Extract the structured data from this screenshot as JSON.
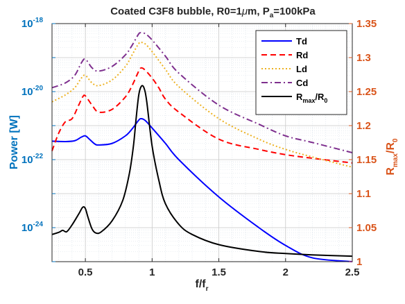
{
  "chart_data": {
    "type": "line",
    "title_parts": [
      "Coated C3F8 bubble, R0=1",
      "μ",
      "m, P",
      "a",
      "=100kPa"
    ],
    "xlabel_parts": [
      "f/f",
      "r"
    ],
    "ylabel_left": "Power [W]",
    "ylabel_right_parts": [
      "R",
      "max",
      "/R",
      "0"
    ],
    "xlim": [
      0.25,
      2.5
    ],
    "x_ticks": [
      0.5,
      1,
      1.5,
      2,
      2.5
    ],
    "x_tick_labels": [
      "0.5",
      "1",
      "1.5",
      "2",
      "2.5"
    ],
    "y_left": {
      "scale": "log",
      "range": [
        1e-25,
        1e-18
      ],
      "tick_exponents": [
        -18,
        -20,
        -22,
        -24
      ],
      "tick_base": "10"
    },
    "y_right": {
      "scale": "linear",
      "range": [
        1.0,
        1.35
      ],
      "ticks": [
        1,
        1.05,
        1.1,
        1.15,
        1.2,
        1.25,
        1.3,
        1.35
      ],
      "tick_labels": [
        "1",
        "1.05",
        "1.1",
        "1.15",
        "1.2",
        "1.25",
        "1.3",
        "1.35"
      ]
    },
    "grid": true,
    "minor_grid": true,
    "legend_position": "top-right",
    "series": [
      {
        "name": "Td",
        "axis": "left",
        "color": "#0000FF",
        "dash": "solid",
        "x": [
          0.25,
          0.35,
          0.42,
          0.47,
          0.5,
          0.53,
          0.57,
          0.6,
          0.7,
          0.8,
          0.85,
          0.9,
          0.92,
          0.95,
          1.0,
          1.1,
          1.2,
          1.5,
          1.8,
          2.0,
          2.2,
          2.5
        ],
        "y": [
          3.5e-22,
          3.4e-22,
          3.6e-22,
          4.6e-22,
          5e-22,
          4e-22,
          2.9e-22,
          2.7e-22,
          3e-22,
          5e-22,
          8e-22,
          1.45e-21,
          1.6e-21,
          1.4e-21,
          8.5e-22,
          3e-22,
          1e-22,
          8e-24,
          1e-24,
          3e-25,
          1.3e-25,
          1e-25
        ]
      },
      {
        "name": "Rd",
        "axis": "left",
        "color": "#FF0000",
        "dash": "dashed",
        "x": [
          0.25,
          0.3,
          0.35,
          0.4,
          0.45,
          0.48,
          0.5,
          0.55,
          0.6,
          0.7,
          0.8,
          0.85,
          0.9,
          0.92,
          0.95,
          1.0,
          1.05,
          1.1,
          1.2,
          1.5,
          1.8,
          2.0,
          2.2,
          2.5
        ],
        "y": [
          1.8e-22,
          6e-22,
          1.3e-21,
          1.6e-21,
          4e-21,
          7e-21,
          7.5e-21,
          4e-21,
          2.5e-21,
          3e-21,
          7e-21,
          1.5e-20,
          4e-20,
          5e-20,
          4.2e-20,
          2.5e-20,
          1.3e-20,
          6e-21,
          2.5e-21,
          4e-22,
          2e-22,
          1.4e-22,
          1.1e-22,
          8e-23
        ]
      },
      {
        "name": "Ld",
        "axis": "left",
        "color": "#EDB120",
        "dash": "dotted",
        "x": [
          0.25,
          0.35,
          0.42,
          0.47,
          0.5,
          0.55,
          0.6,
          0.7,
          0.8,
          0.85,
          0.9,
          0.92,
          0.95,
          1.0,
          1.1,
          1.2,
          1.5,
          1.8,
          2.0,
          2.2,
          2.5
        ],
        "y": [
          5e-21,
          8e-21,
          1.3e-20,
          2.5e-20,
          3e-20,
          1.8e-20,
          1.5e-20,
          2.2e-20,
          5.5e-20,
          1.2e-19,
          2.6e-19,
          2.8e-19,
          2.5e-19,
          1.5e-19,
          4.5e-20,
          1.4e-20,
          1.6e-21,
          4e-22,
          2e-22,
          1.2e-22,
          6e-23
        ]
      },
      {
        "name": "Cd",
        "axis": "left",
        "color": "#7E2F8E",
        "dash": "dashdot",
        "x": [
          0.25,
          0.35,
          0.42,
          0.47,
          0.5,
          0.55,
          0.6,
          0.7,
          0.8,
          0.85,
          0.9,
          0.92,
          0.95,
          1.0,
          1.1,
          1.2,
          1.5,
          1.8,
          2.0,
          2.2,
          2.5
        ],
        "y": [
          1.3e-20,
          1.8e-20,
          3e-20,
          7e-20,
          9e-20,
          5e-20,
          4e-20,
          5.5e-20,
          1.2e-19,
          2.3e-19,
          5e-19,
          5.3e-19,
          5e-19,
          3.3e-19,
          1.1e-19,
          3.5e-20,
          4e-21,
          1.1e-21,
          5e-22,
          3.2e-22,
          1.6e-22
        ]
      },
      {
        "name_parts": [
          "R",
          "max",
          "/R",
          "0"
        ],
        "axis": "right",
        "color": "#000000",
        "dash": "solid",
        "x": [
          0.25,
          0.3,
          0.33,
          0.36,
          0.4,
          0.45,
          0.48,
          0.5,
          0.52,
          0.55,
          0.58,
          0.62,
          0.7,
          0.78,
          0.83,
          0.86,
          0.88,
          0.9,
          0.92,
          0.94,
          0.96,
          1.0,
          1.05,
          1.1,
          1.2,
          1.3,
          1.5,
          1.8,
          2.0,
          2.2,
          2.5
        ],
        "y": [
          1.04,
          1.043,
          1.046,
          1.044,
          1.054,
          1.07,
          1.08,
          1.078,
          1.065,
          1.048,
          1.042,
          1.044,
          1.06,
          1.09,
          1.13,
          1.17,
          1.21,
          1.245,
          1.258,
          1.255,
          1.235,
          1.17,
          1.12,
          1.085,
          1.055,
          1.04,
          1.025,
          1.015,
          1.012,
          1.01,
          1.008
        ]
      }
    ]
  }
}
